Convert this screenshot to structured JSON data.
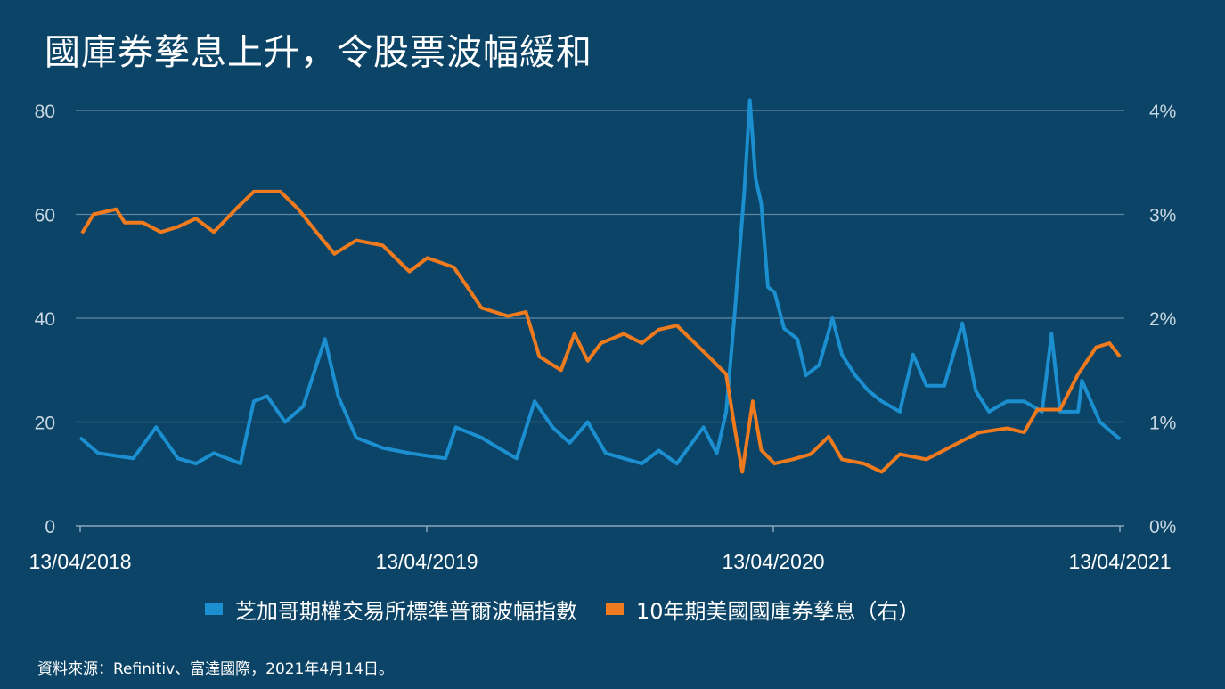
{
  "title": "國庫券孳息上升，令股票波幅緩和",
  "source": "資料來源：Refinitiv、富達國際，2021年4月14日。",
  "colors": {
    "background": "#0b4466",
    "vix": "#1b8fd0",
    "treasury": "#f07a1e",
    "grid": "#5f86a3"
  },
  "chart_data": {
    "type": "line",
    "title": "國庫券孳息上升，令股票波幅緩和",
    "grid": true,
    "legend_position": "bottom",
    "x_ticks": [
      "13/04/2018",
      "13/04/2019",
      "13/04/2020",
      "13/04/2021"
    ],
    "xlim": [
      "2018-04-13",
      "2021-04-13"
    ],
    "y_left": {
      "ticks": [
        "0",
        "20",
        "40",
        "60",
        "80"
      ],
      "ylim": [
        0,
        80
      ]
    },
    "y_right": {
      "ticks": [
        "0%",
        "1%",
        "2%",
        "3%",
        "4%"
      ],
      "ylim": [
        0,
        4
      ]
    },
    "series": [
      {
        "name": "芝加哥期權交易所標準普爾波幅指數",
        "axis": "left",
        "color": "#1b8fd0",
        "points": [
          [
            "2018-04-13",
            17
          ],
          [
            "2018-05-02",
            14
          ],
          [
            "2018-06-08",
            13
          ],
          [
            "2018-07-02",
            19
          ],
          [
            "2018-07-25",
            13
          ],
          [
            "2018-08-13",
            12
          ],
          [
            "2018-09-01",
            14
          ],
          [
            "2018-09-29",
            12
          ],
          [
            "2018-10-13",
            24
          ],
          [
            "2018-10-27",
            25
          ],
          [
            "2018-11-15",
            20
          ],
          [
            "2018-12-04",
            23
          ],
          [
            "2018-12-27",
            36
          ],
          [
            "2019-01-10",
            25
          ],
          [
            "2019-01-29",
            17
          ],
          [
            "2019-02-26",
            15
          ],
          [
            "2019-03-26",
            14
          ],
          [
            "2019-04-14",
            13.5
          ],
          [
            "2019-05-03",
            13
          ],
          [
            "2019-05-14",
            19
          ],
          [
            "2019-06-10",
            17
          ],
          [
            "2019-06-28",
            15
          ],
          [
            "2019-07-17",
            13
          ],
          [
            "2019-08-05",
            24
          ],
          [
            "2019-08-24",
            19
          ],
          [
            "2019-09-11",
            16
          ],
          [
            "2019-09-30",
            20
          ],
          [
            "2019-10-19",
            14
          ],
          [
            "2019-11-07",
            13
          ],
          [
            "2019-11-26",
            12
          ],
          [
            "2019-12-14",
            14.5
          ],
          [
            "2020-01-02",
            12
          ],
          [
            "2020-01-30",
            19
          ],
          [
            "2020-02-13",
            14
          ],
          [
            "2020-02-23",
            22
          ],
          [
            "2020-03-03",
            41
          ],
          [
            "2020-03-13",
            64
          ],
          [
            "2020-03-19",
            82
          ],
          [
            "2020-03-25",
            67
          ],
          [
            "2020-03-31",
            62
          ],
          [
            "2020-04-07",
            46
          ],
          [
            "2020-04-14",
            45
          ],
          [
            "2020-04-24",
            38
          ],
          [
            "2020-05-08",
            36
          ],
          [
            "2020-05-17",
            29
          ],
          [
            "2020-05-31",
            31
          ],
          [
            "2020-06-14",
            40
          ],
          [
            "2020-06-24",
            33
          ],
          [
            "2020-07-08",
            29
          ],
          [
            "2020-07-22",
            26
          ],
          [
            "2020-08-05",
            24
          ],
          [
            "2020-08-24",
            22
          ],
          [
            "2020-09-07",
            33
          ],
          [
            "2020-09-21",
            27
          ],
          [
            "2020-10-10",
            27
          ],
          [
            "2020-10-29",
            39
          ],
          [
            "2020-11-12",
            26
          ],
          [
            "2020-11-26",
            22
          ],
          [
            "2020-12-15",
            24
          ],
          [
            "2021-01-02",
            24
          ],
          [
            "2021-01-21",
            22
          ],
          [
            "2021-01-31",
            37
          ],
          [
            "2021-02-09",
            22
          ],
          [
            "2021-02-28",
            22
          ],
          [
            "2021-03-04",
            28
          ],
          [
            "2021-03-23",
            20
          ],
          [
            "2021-04-13",
            16.7
          ]
        ]
      },
      {
        "name": "10年期美國國庫券孳息（右）",
        "axis": "right",
        "color": "#f07a1e",
        "points": [
          [
            "2018-04-15",
            2.82
          ],
          [
            "2018-04-27",
            3.0
          ],
          [
            "2018-05-21",
            3.05
          ],
          [
            "2018-05-30",
            2.92
          ],
          [
            "2018-06-18",
            2.92
          ],
          [
            "2018-07-07",
            2.83
          ],
          [
            "2018-07-25",
            2.88
          ],
          [
            "2018-08-13",
            2.96
          ],
          [
            "2018-09-01",
            2.83
          ],
          [
            "2018-09-24",
            3.05
          ],
          [
            "2018-10-13",
            3.22
          ],
          [
            "2018-11-10",
            3.22
          ],
          [
            "2018-11-29",
            3.05
          ],
          [
            "2018-12-18",
            2.83
          ],
          [
            "2019-01-06",
            2.62
          ],
          [
            "2019-01-29",
            2.75
          ],
          [
            "2019-02-26",
            2.7
          ],
          [
            "2019-03-26",
            2.45
          ],
          [
            "2019-04-14",
            2.58
          ],
          [
            "2019-05-12",
            2.49
          ],
          [
            "2019-06-10",
            2.1
          ],
          [
            "2019-07-08",
            2.02
          ],
          [
            "2019-07-27",
            2.06
          ],
          [
            "2019-08-10",
            1.63
          ],
          [
            "2019-09-02",
            1.5
          ],
          [
            "2019-09-16",
            1.85
          ],
          [
            "2019-09-30",
            1.59
          ],
          [
            "2019-10-14",
            1.76
          ],
          [
            "2019-11-07",
            1.85
          ],
          [
            "2019-11-26",
            1.76
          ],
          [
            "2019-12-14",
            1.89
          ],
          [
            "2020-01-02",
            1.93
          ],
          [
            "2020-01-21",
            1.76
          ],
          [
            "2020-02-09",
            1.59
          ],
          [
            "2020-02-23",
            1.46
          ],
          [
            "2020-03-03",
            0.94
          ],
          [
            "2020-03-11",
            0.52
          ],
          [
            "2020-03-22",
            1.2
          ],
          [
            "2020-03-31",
            0.73
          ],
          [
            "2020-04-14",
            0.6
          ],
          [
            "2020-05-03",
            0.64
          ],
          [
            "2020-05-22",
            0.69
          ],
          [
            "2020-06-10",
            0.86
          ],
          [
            "2020-06-24",
            0.64
          ],
          [
            "2020-07-17",
            0.6
          ],
          [
            "2020-08-05",
            0.52
          ],
          [
            "2020-08-24",
            0.69
          ],
          [
            "2020-09-21",
            0.64
          ],
          [
            "2020-10-10",
            0.73
          ],
          [
            "2020-10-29",
            0.82
          ],
          [
            "2020-11-16",
            0.9
          ],
          [
            "2020-12-15",
            0.94
          ],
          [
            "2021-01-02",
            0.9
          ],
          [
            "2021-01-16",
            1.12
          ],
          [
            "2021-02-09",
            1.12
          ],
          [
            "2021-02-28",
            1.46
          ],
          [
            "2021-03-19",
            1.72
          ],
          [
            "2021-04-02",
            1.76
          ],
          [
            "2021-04-13",
            1.63
          ]
        ]
      }
    ]
  }
}
